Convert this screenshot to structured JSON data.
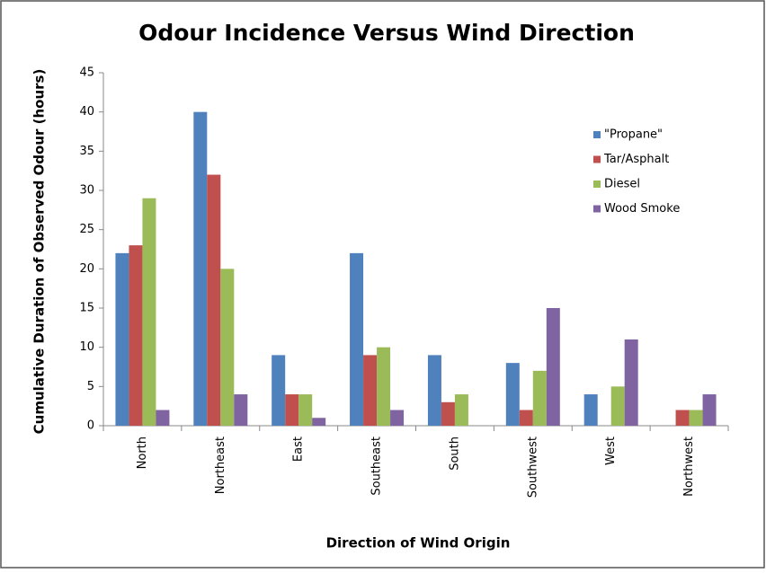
{
  "chart_data": {
    "type": "bar",
    "title": "Odour Incidence Versus Wind Direction",
    "x_label": "Direction of Wind Origin",
    "y_label": "Cumulative Duration of Observed Odour (hours)",
    "categories": [
      "North",
      "Northeast",
      "East",
      "Southeast",
      "South",
      "Southwest",
      "West",
      "Northwest"
    ],
    "series": [
      {
        "name": "\"Propane\"",
        "color": "#4f81bd",
        "values": [
          22,
          40,
          9,
          22,
          9,
          8,
          4,
          0
        ]
      },
      {
        "name": "Tar/Asphalt",
        "color": "#c0504d",
        "values": [
          23,
          32,
          4,
          9,
          3,
          2,
          0,
          2
        ]
      },
      {
        "name": "Diesel",
        "color": "#9bbb59",
        "values": [
          29,
          20,
          4,
          10,
          4,
          7,
          5,
          2
        ]
      },
      {
        "name": "Wood Smoke",
        "color": "#8064a2",
        "values": [
          2,
          4,
          1,
          2,
          0,
          15,
          11,
          4
        ]
      }
    ],
    "ylim": [
      0,
      45
    ],
    "yticks": [
      0,
      5,
      10,
      15,
      20,
      25,
      30,
      35,
      40,
      45
    ],
    "grid": false,
    "legend": "right"
  }
}
